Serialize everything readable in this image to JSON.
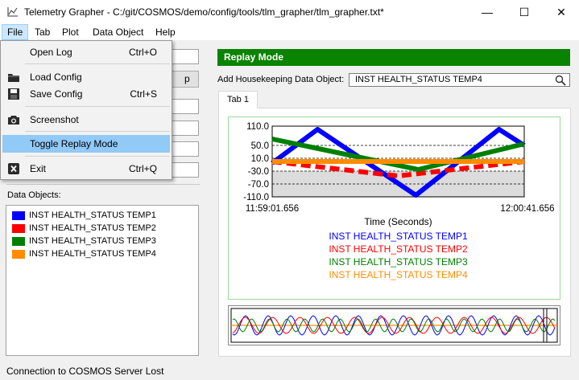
{
  "window": {
    "title": "Telemetry Grapher - C:/git/COSMOS/demo/config/tools/tlm_grapher/tlm_grapher.txt*",
    "minimize_label": "—",
    "maximize_label": "☐",
    "close_label": "✕"
  },
  "menubar": {
    "items": [
      "File",
      "Tab",
      "Plot",
      "Data Object",
      "Help"
    ]
  },
  "file_menu": {
    "items": [
      {
        "label": "Open Log",
        "shortcut": "Ctrl+O",
        "icon": ""
      },
      {
        "label": "Load Config",
        "shortcut": "",
        "icon": "folder-icon"
      },
      {
        "label": "Save Config",
        "shortcut": "Ctrl+S",
        "icon": "floppy-disk-icon"
      },
      {
        "label": "Screenshot",
        "shortcut": "",
        "icon": "camera-icon"
      },
      {
        "label": "Toggle Replay Mode",
        "shortcut": "",
        "icon": ""
      },
      {
        "label": "Exit",
        "shortcut": "Ctrl+Q",
        "icon": "exit-icon"
      }
    ]
  },
  "left_panel": {
    "data_objects_label": "Data Objects:",
    "data_objects": [
      {
        "label": "INST HEALTH_STATUS TEMP1",
        "color": "#0000ff"
      },
      {
        "label": "INST HEALTH_STATUS TEMP2",
        "color": "#ff0000"
      },
      {
        "label": "INST HEALTH_STATUS TEMP3",
        "color": "#008000"
      },
      {
        "label": "INST HEALTH_STATUS TEMP4",
        "color": "#ff8c00"
      }
    ]
  },
  "status_text": "Connection to COSMOS Server Lost",
  "right_panel": {
    "replay_mode_label": "Replay Mode",
    "replay_color": "#098300",
    "add_housekeeping_label": "Add Housekeeping Data Object:",
    "search_value": "INST HEALTH_STATUS TEMP4",
    "tab_label": "Tab 1"
  },
  "chart_data": {
    "type": "line",
    "xlabel": "Time (Seconds)",
    "x_ticks": [
      "11:59:01.656",
      "12:00:41.656"
    ],
    "y_ticks": [
      "110.0",
      "50.0",
      "10.0",
      "-30.0",
      "-70.0",
      "-110.0"
    ],
    "ylim": [
      -110,
      110
    ],
    "xlim": [
      0,
      100
    ],
    "grid": true,
    "legend_position": "bottom",
    "series": [
      {
        "name": "INST HEALTH_STATUS TEMP1",
        "color": "#0000ff",
        "style": "solid",
        "x": [
          0,
          18,
          57,
          90,
          100
        ],
        "y": [
          -5,
          100,
          -105,
          100,
          50
        ]
      },
      {
        "name": "INST HEALTH_STATUS TEMP2",
        "color": "#ff0000",
        "style": "dashed",
        "x": [
          0,
          50,
          100
        ],
        "y": [
          0,
          -45,
          0
        ]
      },
      {
        "name": "INST HEALTH_STATUS TEMP3",
        "color": "#008000",
        "style": "solid",
        "x": [
          0,
          58,
          100
        ],
        "y": [
          70,
          -25,
          55
        ]
      },
      {
        "name": "INST HEALTH_STATUS TEMP4",
        "color": "#ff8c00",
        "style": "solid",
        "x": [
          0,
          100
        ],
        "y": [
          0,
          0
        ]
      }
    ]
  }
}
